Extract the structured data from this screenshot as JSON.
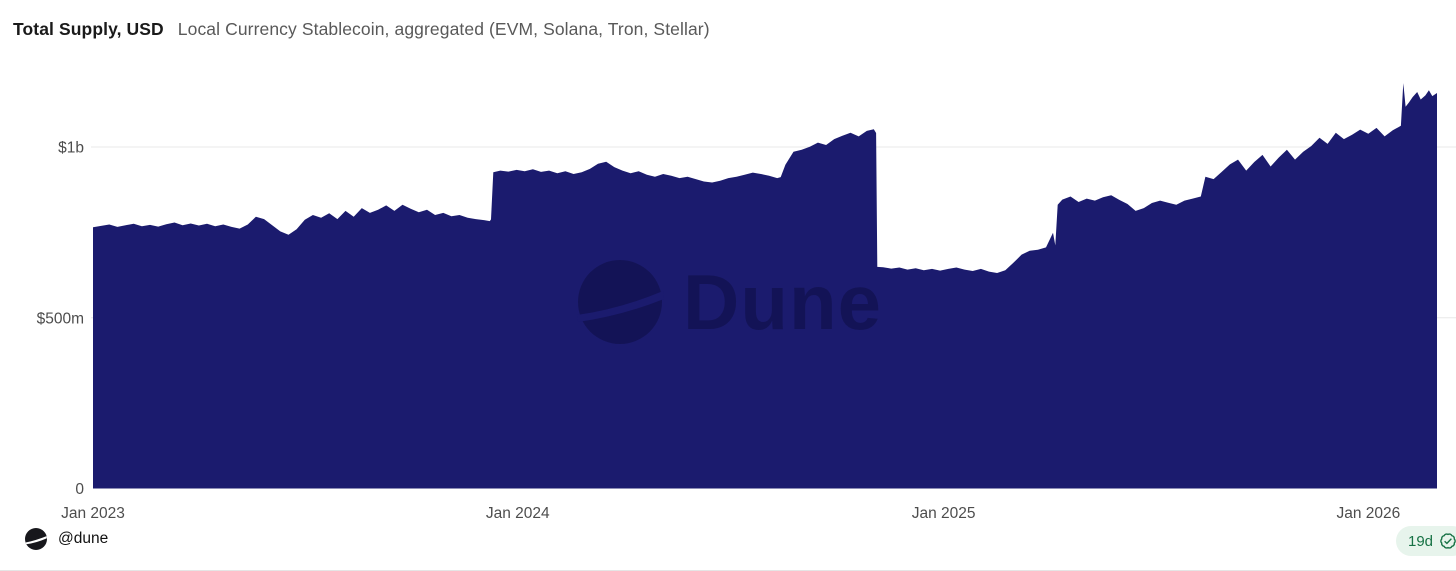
{
  "header": {
    "title": "Total Supply, USD",
    "subtitle": "Local Currency Stablecoin, aggregated (EVM, Solana, Tron, Stellar)"
  },
  "footer": {
    "attribution": "@dune",
    "logo_icon": "dune-logo-icon",
    "badge": {
      "label": "19d",
      "icon": "verified-check-icon",
      "text_color": "#177245",
      "bg_color": "#e7f4ec"
    }
  },
  "watermark": {
    "text": "Dune",
    "icon": "dune-logo-icon"
  },
  "colors": {
    "area_fill": "#1b1b6e",
    "gridline": "#e8e8e8",
    "axis_label": "#4d4d4d",
    "watermark_overlay": "rgba(0,0,25,0.28)"
  },
  "chart_data": {
    "type": "area",
    "title": "Total Supply, USD",
    "subtitle": "Local Currency Stablecoin, aggregated (EVM, Solana, Tron, Stellar)",
    "unit": "USD millions",
    "grid": "horizontal",
    "legend": "none",
    "x_domain": [
      "2023-01-01",
      "2026-03-01"
    ],
    "ylim": [
      0,
      1255
    ],
    "x_ticks": [
      {
        "label": "Jan 2023",
        "date": "2023-01-01"
      },
      {
        "label": "Jan 2024",
        "date": "2024-01-01"
      },
      {
        "label": "Jan 2025",
        "date": "2025-01-01"
      },
      {
        "label": "Jan 2026",
        "date": "2026-01-01"
      }
    ],
    "y_ticks": [
      {
        "label": "$1b",
        "value": 1000
      },
      {
        "label": "$500m",
        "value": 500
      },
      {
        "label": "0",
        "value": 0
      }
    ],
    "series": [
      {
        "name": "Total Supply, USD",
        "color": "#1b1b6e",
        "points": [
          [
            "2023-01-01",
            765
          ],
          [
            "2023-01-08",
            769
          ],
          [
            "2023-01-15",
            773
          ],
          [
            "2023-01-22",
            766
          ],
          [
            "2023-01-29",
            771
          ],
          [
            "2023-02-05",
            775
          ],
          [
            "2023-02-12",
            768
          ],
          [
            "2023-02-19",
            772
          ],
          [
            "2023-02-26",
            767
          ],
          [
            "2023-03-05",
            774
          ],
          [
            "2023-03-12",
            779
          ],
          [
            "2023-03-19",
            771
          ],
          [
            "2023-03-26",
            776
          ],
          [
            "2023-04-02",
            770
          ],
          [
            "2023-04-09",
            775
          ],
          [
            "2023-04-16",
            768
          ],
          [
            "2023-04-23",
            773
          ],
          [
            "2023-04-30",
            766
          ],
          [
            "2023-05-07",
            761
          ],
          [
            "2023-05-14",
            773
          ],
          [
            "2023-05-21",
            796
          ],
          [
            "2023-05-28",
            789
          ],
          [
            "2023-06-04",
            771
          ],
          [
            "2023-06-11",
            753
          ],
          [
            "2023-06-18",
            743
          ],
          [
            "2023-06-25",
            759
          ],
          [
            "2023-07-02",
            787
          ],
          [
            "2023-07-09",
            801
          ],
          [
            "2023-07-16",
            793
          ],
          [
            "2023-07-23",
            806
          ],
          [
            "2023-07-30",
            789
          ],
          [
            "2023-08-06",
            813
          ],
          [
            "2023-08-13",
            796
          ],
          [
            "2023-08-20",
            821
          ],
          [
            "2023-08-27",
            807
          ],
          [
            "2023-09-03",
            816
          ],
          [
            "2023-09-10",
            829
          ],
          [
            "2023-09-17",
            813
          ],
          [
            "2023-09-24",
            831
          ],
          [
            "2023-10-01",
            819
          ],
          [
            "2023-10-08",
            809
          ],
          [
            "2023-10-15",
            816
          ],
          [
            "2023-10-22",
            801
          ],
          [
            "2023-10-29",
            807
          ],
          [
            "2023-11-05",
            797
          ],
          [
            "2023-11-12",
            801
          ],
          [
            "2023-11-19",
            793
          ],
          [
            "2023-11-26",
            789
          ],
          [
            "2023-12-03",
            786
          ],
          [
            "2023-12-08",
            783
          ],
          [
            "2023-12-09",
            788
          ],
          [
            "2023-12-11",
            926
          ],
          [
            "2023-12-17",
            931
          ],
          [
            "2023-12-24",
            928
          ],
          [
            "2023-12-31",
            933
          ],
          [
            "2024-01-07",
            929
          ],
          [
            "2024-01-14",
            935
          ],
          [
            "2024-01-21",
            927
          ],
          [
            "2024-01-28",
            931
          ],
          [
            "2024-02-04",
            923
          ],
          [
            "2024-02-11",
            929
          ],
          [
            "2024-02-18",
            921
          ],
          [
            "2024-02-25",
            926
          ],
          [
            "2024-03-03",
            936
          ],
          [
            "2024-03-10",
            951
          ],
          [
            "2024-03-17",
            957
          ],
          [
            "2024-03-24",
            941
          ],
          [
            "2024-03-31",
            931
          ],
          [
            "2024-04-07",
            923
          ],
          [
            "2024-04-14",
            929
          ],
          [
            "2024-04-21",
            919
          ],
          [
            "2024-04-28",
            913
          ],
          [
            "2024-05-05",
            921
          ],
          [
            "2024-05-12",
            916
          ],
          [
            "2024-05-19",
            909
          ],
          [
            "2024-05-26",
            913
          ],
          [
            "2024-06-02",
            906
          ],
          [
            "2024-06-09",
            899
          ],
          [
            "2024-06-16",
            896
          ],
          [
            "2024-06-23",
            901
          ],
          [
            "2024-06-30",
            909
          ],
          [
            "2024-07-07",
            913
          ],
          [
            "2024-07-14",
            919
          ],
          [
            "2024-07-21",
            925
          ],
          [
            "2024-07-28",
            921
          ],
          [
            "2024-08-04",
            916
          ],
          [
            "2024-08-11",
            909
          ],
          [
            "2024-08-14",
            912
          ],
          [
            "2024-08-18",
            948
          ],
          [
            "2024-08-25",
            986
          ],
          [
            "2024-09-01",
            992
          ],
          [
            "2024-09-08",
            1001
          ],
          [
            "2024-09-15",
            1013
          ],
          [
            "2024-09-22",
            1006
          ],
          [
            "2024-09-29",
            1023
          ],
          [
            "2024-10-06",
            1033
          ],
          [
            "2024-10-13",
            1042
          ],
          [
            "2024-10-20",
            1031
          ],
          [
            "2024-10-27",
            1047
          ],
          [
            "2024-11-02",
            1052
          ],
          [
            "2024-11-04",
            1041
          ],
          [
            "2024-11-05",
            649
          ],
          [
            "2024-11-10",
            648
          ],
          [
            "2024-11-17",
            644
          ],
          [
            "2024-11-24",
            647
          ],
          [
            "2024-12-01",
            641
          ],
          [
            "2024-12-08",
            645
          ],
          [
            "2024-12-15",
            639
          ],
          [
            "2024-12-22",
            643
          ],
          [
            "2024-12-29",
            638
          ],
          [
            "2025-01-05",
            643
          ],
          [
            "2025-01-12",
            647
          ],
          [
            "2025-01-19",
            641
          ],
          [
            "2025-01-26",
            637
          ],
          [
            "2025-02-02",
            643
          ],
          [
            "2025-02-09",
            635
          ],
          [
            "2025-02-16",
            631
          ],
          [
            "2025-02-23",
            639
          ],
          [
            "2025-03-02",
            661
          ],
          [
            "2025-03-09",
            685
          ],
          [
            "2025-03-16",
            696
          ],
          [
            "2025-03-23",
            699
          ],
          [
            "2025-03-30",
            706
          ],
          [
            "2025-04-05",
            749
          ],
          [
            "2025-04-07",
            712
          ],
          [
            "2025-04-09",
            831
          ],
          [
            "2025-04-13",
            846
          ],
          [
            "2025-04-20",
            855
          ],
          [
            "2025-04-27",
            839
          ],
          [
            "2025-05-04",
            849
          ],
          [
            "2025-05-11",
            843
          ],
          [
            "2025-05-18",
            853
          ],
          [
            "2025-05-25",
            859
          ],
          [
            "2025-06-01",
            845
          ],
          [
            "2025-06-08",
            833
          ],
          [
            "2025-06-15",
            813
          ],
          [
            "2025-06-22",
            821
          ],
          [
            "2025-06-29",
            836
          ],
          [
            "2025-07-06",
            843
          ],
          [
            "2025-07-13",
            837
          ],
          [
            "2025-07-20",
            831
          ],
          [
            "2025-07-27",
            843
          ],
          [
            "2025-08-03",
            849
          ],
          [
            "2025-08-10",
            855
          ],
          [
            "2025-08-14",
            913
          ],
          [
            "2025-08-21",
            906
          ],
          [
            "2025-08-28",
            927
          ],
          [
            "2025-09-04",
            949
          ],
          [
            "2025-09-11",
            963
          ],
          [
            "2025-09-18",
            931
          ],
          [
            "2025-09-25",
            956
          ],
          [
            "2025-10-02",
            977
          ],
          [
            "2025-10-09",
            943
          ],
          [
            "2025-10-16",
            969
          ],
          [
            "2025-10-23",
            992
          ],
          [
            "2025-10-30",
            963
          ],
          [
            "2025-11-06",
            986
          ],
          [
            "2025-11-13",
            1003
          ],
          [
            "2025-11-20",
            1027
          ],
          [
            "2025-11-27",
            1009
          ],
          [
            "2025-12-04",
            1042
          ],
          [
            "2025-12-11",
            1023
          ],
          [
            "2025-12-18",
            1036
          ],
          [
            "2025-12-25",
            1051
          ],
          [
            "2026-01-01",
            1039
          ],
          [
            "2026-01-08",
            1056
          ],
          [
            "2026-01-15",
            1031
          ],
          [
            "2026-01-22",
            1049
          ],
          [
            "2026-01-29",
            1062
          ],
          [
            "2026-01-31",
            1187
          ],
          [
            "2026-02-02",
            1118
          ],
          [
            "2026-02-05",
            1131
          ],
          [
            "2026-02-08",
            1146
          ],
          [
            "2026-02-12",
            1161
          ],
          [
            "2026-02-15",
            1139
          ],
          [
            "2026-02-19",
            1151
          ],
          [
            "2026-02-22",
            1166
          ],
          [
            "2026-02-25",
            1149
          ],
          [
            "2026-03-01",
            1158
          ]
        ]
      }
    ]
  }
}
